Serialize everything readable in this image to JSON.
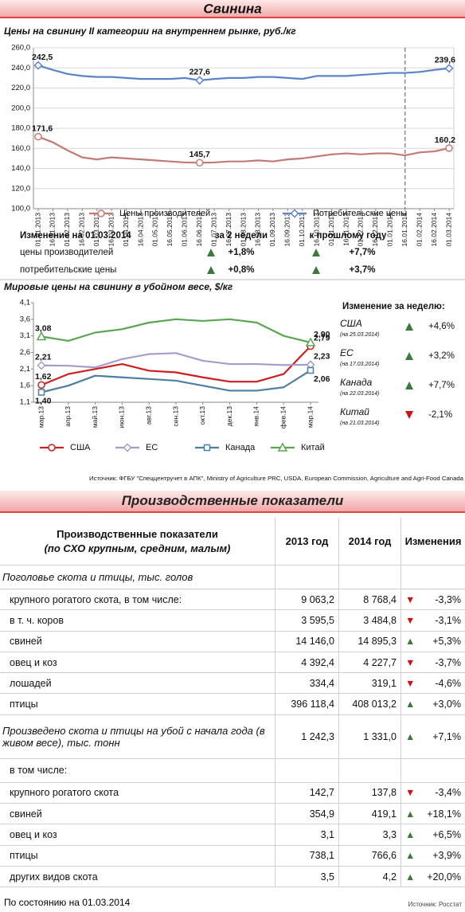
{
  "header_title": "Свинина",
  "chart_data": [
    {
      "type": "line",
      "title": "Цены на свинину II категории на внутреннем рынке, руб./кг",
      "x": [
        "01.01.2013",
        "16.01.2013",
        "01.02.2013",
        "16.02.2013",
        "01.03.2013",
        "16.03.2013",
        "01.04.2013",
        "16.04.2013",
        "01.05.2013",
        "16.05.2013",
        "01.06.2013",
        "16.06.2013",
        "01.07.2013",
        "16.07.2013",
        "01.08.2013",
        "16.08.2013",
        "01.09.2013",
        "16.09.2013",
        "01.10.2013",
        "16.10.2013",
        "01.11.2013",
        "16.11.2013",
        "01.12.2013",
        "16.12.2013",
        "01.01.2014",
        "16.01.2014",
        "01.02.2014",
        "16.02.2014",
        "01.03.2014"
      ],
      "series": [
        {
          "name": "Цены производителей",
          "color": "#c47a74",
          "marker": "circle",
          "values": [
            171.6,
            166,
            158,
            151,
            149,
            151,
            150,
            149,
            148,
            147,
            146,
            145.7,
            146,
            147,
            147,
            148,
            147,
            149,
            150,
            152,
            154,
            155,
            154,
            155,
            155,
            153,
            156,
            157,
            160.2
          ],
          "value_labels": [
            "171,6",
            null,
            null,
            null,
            null,
            null,
            null,
            null,
            null,
            null,
            null,
            "145,7",
            null,
            null,
            null,
            null,
            null,
            null,
            null,
            null,
            null,
            null,
            null,
            null,
            null,
            null,
            null,
            null,
            "160,2"
          ]
        },
        {
          "name": "Потребительские цены",
          "color": "#5b84c8",
          "marker": "diamond",
          "values": [
            242.5,
            238,
            234,
            232,
            231,
            231,
            230,
            229,
            229,
            229,
            230,
            227.6,
            229,
            230,
            230,
            231,
            231,
            230,
            229,
            232,
            232,
            232,
            233,
            234,
            235,
            235,
            236,
            238,
            239.6
          ],
          "value_labels": [
            "242,5",
            null,
            null,
            null,
            null,
            null,
            null,
            null,
            null,
            null,
            null,
            "227,6",
            null,
            null,
            null,
            null,
            null,
            null,
            null,
            null,
            null,
            null,
            null,
            null,
            null,
            null,
            null,
            null,
            "239,6"
          ]
        }
      ],
      "ylim": [
        100,
        260
      ],
      "yticks": [
        {
          "value": 100,
          "label": "100,0"
        },
        {
          "value": 120,
          "label": "120,0"
        },
        {
          "value": 140,
          "label": "140,0"
        },
        {
          "value": 160,
          "label": "160,0"
        },
        {
          "value": 180,
          "label": "180,0"
        },
        {
          "value": 200,
          "label": "200,0"
        },
        {
          "value": 220,
          "label": "220,0"
        },
        {
          "value": 240,
          "label": "240,0"
        },
        {
          "value": 260,
          "label": "260,0"
        }
      ],
      "grid": true
    },
    {
      "type": "line",
      "title": "Мировые цены на свинину в убойном весе, $/кг",
      "categories": [
        "мар.13",
        "апр.13",
        "май.13",
        "июн.13",
        "авг.13",
        "сен.13",
        "окт.13",
        "дек.13",
        "янв.14",
        "фев.14",
        "мар.14"
      ],
      "series": [
        {
          "name": "США",
          "color": "#cc2020",
          "marker": "circle",
          "values": [
            1.62,
            1.95,
            2.1,
            2.25,
            2.05,
            2.0,
            1.85,
            1.72,
            1.72,
            1.95,
            2.79
          ],
          "value_labels": [
            "1,62",
            null,
            null,
            null,
            null,
            null,
            null,
            null,
            null,
            null,
            "2,79"
          ]
        },
        {
          "name": "ЕС",
          "color": "#a99bc9",
          "marker": "diamond",
          "values": [
            2.21,
            2.2,
            2.15,
            2.4,
            2.55,
            2.58,
            2.35,
            2.25,
            2.25,
            2.22,
            2.23
          ],
          "value_labels": [
            "2,21",
            null,
            null,
            null,
            null,
            null,
            null,
            null,
            null,
            null,
            "2,23"
          ]
        },
        {
          "name": "Канада",
          "color": "#4d7fa0",
          "marker": "square",
          "values": [
            1.4,
            1.6,
            1.9,
            1.85,
            1.8,
            1.75,
            1.6,
            1.45,
            1.45,
            1.55,
            2.06
          ],
          "value_labels": [
            "1,40",
            null,
            null,
            null,
            null,
            null,
            null,
            null,
            null,
            null,
            "2,06"
          ]
        },
        {
          "name": "Китай",
          "color": "#5aa552",
          "marker": "triangle",
          "values": [
            3.08,
            2.95,
            3.2,
            3.3,
            3.5,
            3.6,
            3.55,
            3.6,
            3.5,
            3.1,
            2.9
          ],
          "value_labels": [
            "3,08",
            null,
            null,
            null,
            null,
            null,
            null,
            null,
            null,
            null,
            "2,90"
          ]
        }
      ],
      "ylim": [
        1.1,
        4.1
      ],
      "yticks": [
        {
          "value": 1.1,
          "label": "1,1"
        },
        {
          "value": 1.6,
          "label": "1,6"
        },
        {
          "value": 2.1,
          "label": "2,1"
        },
        {
          "value": 2.6,
          "label": "2,6"
        },
        {
          "value": 3.1,
          "label": "3,1"
        },
        {
          "value": 3.6,
          "label": "3,6"
        },
        {
          "value": 4.1,
          "label": "4,1"
        }
      ],
      "grid": false
    }
  ],
  "change_table": {
    "title": "Изменение на 01.03.2014",
    "columns": [
      "за 2 недели",
      "к прошлому году"
    ],
    "rows": [
      [
        "цены производителей",
        "+1,8%",
        "+7,7%"
      ],
      [
        "потребительские цены",
        "+0,8%",
        "+3,7%"
      ]
    ]
  },
  "weekly_change": {
    "title": "Изменение за неделю:",
    "items": [
      {
        "name": "США",
        "date": "(на 25.03.2014)",
        "change": "+4,6%"
      },
      {
        "name": "ЕС",
        "date": "(на 17.03.2014)",
        "change": "+3,2%"
      },
      {
        "name": "Канада",
        "date": "(на 22.03.2014)",
        "change": "+7,7%"
      },
      {
        "name": "Китай",
        "date": "(на 21.03.2014)",
        "change": "-2,1%"
      }
    ]
  },
  "source": "Источник: ФГБУ \"Спеццентручет в АПК\", Ministry of Agriculture PRC, USDA, European Commission, Agriculture and Agri-Food Canada",
  "section_title": "Производственные показатели",
  "table": {
    "header": {
      "title": "Производственные показатели",
      "subtitle": "(по СХО крупным, средним, малым)",
      "columns": [
        "2013 год",
        "2014 год",
        "Изменения"
      ]
    },
    "rows": [
      {
        "label": "Поголовье скота и птицы, тыс. голов",
        "style": "italic"
      },
      {
        "label": "крупного рогатого скота, в том числе:",
        "v2013": "9 063,2",
        "v2014": "8 768,4",
        "change": "-3,3%"
      },
      {
        "label": "в т. ч. коров",
        "v2013": "3 595,5",
        "v2014": "3 484,8",
        "change": "-3,1%"
      },
      {
        "label": "свиней",
        "v2013": "14 146,0",
        "v2014": "14 895,3",
        "change": "+5,3%"
      },
      {
        "label": "овец и коз",
        "v2013": "4 392,4",
        "v2014": "4 227,7",
        "change": "-3,7%"
      },
      {
        "label": "лошадей",
        "v2013": "334,4",
        "v2014": "319,1",
        "change": "-4,6%"
      },
      {
        "label": "птицы",
        "v2013": "396 118,4",
        "v2014": "408 013,2",
        "change": "+3,0%"
      },
      {
        "label": "Произведено скота и птицы на убой с начала года (в живом весе), тыс. тонн",
        "style": "italic",
        "v2013": "1 242,3",
        "v2014": "1 331,0",
        "change": "+7,1%"
      },
      {
        "label": "в том числе:"
      },
      {
        "label": "крупного рогатого скота",
        "v2013": "142,7",
        "v2014": "137,8",
        "change": "-3,4%"
      },
      {
        "label": "свиней",
        "v2013": "354,9",
        "v2014": "419,1",
        "change": "+18,1%"
      },
      {
        "label": "овец и коз",
        "v2013": "3,1",
        "v2014": "3,3",
        "change": "+6,5%"
      },
      {
        "label": "птицы",
        "v2013": "738,1",
        "v2014": "766,6",
        "change": "+3,9%"
      },
      {
        "label": "других видов скота",
        "v2013": "3,5",
        "v2014": "4,2",
        "change": "+20,0%"
      }
    ]
  },
  "footer": {
    "date": "По состоянию на 01.03.2014",
    "source": "Источник: Росстат"
  }
}
